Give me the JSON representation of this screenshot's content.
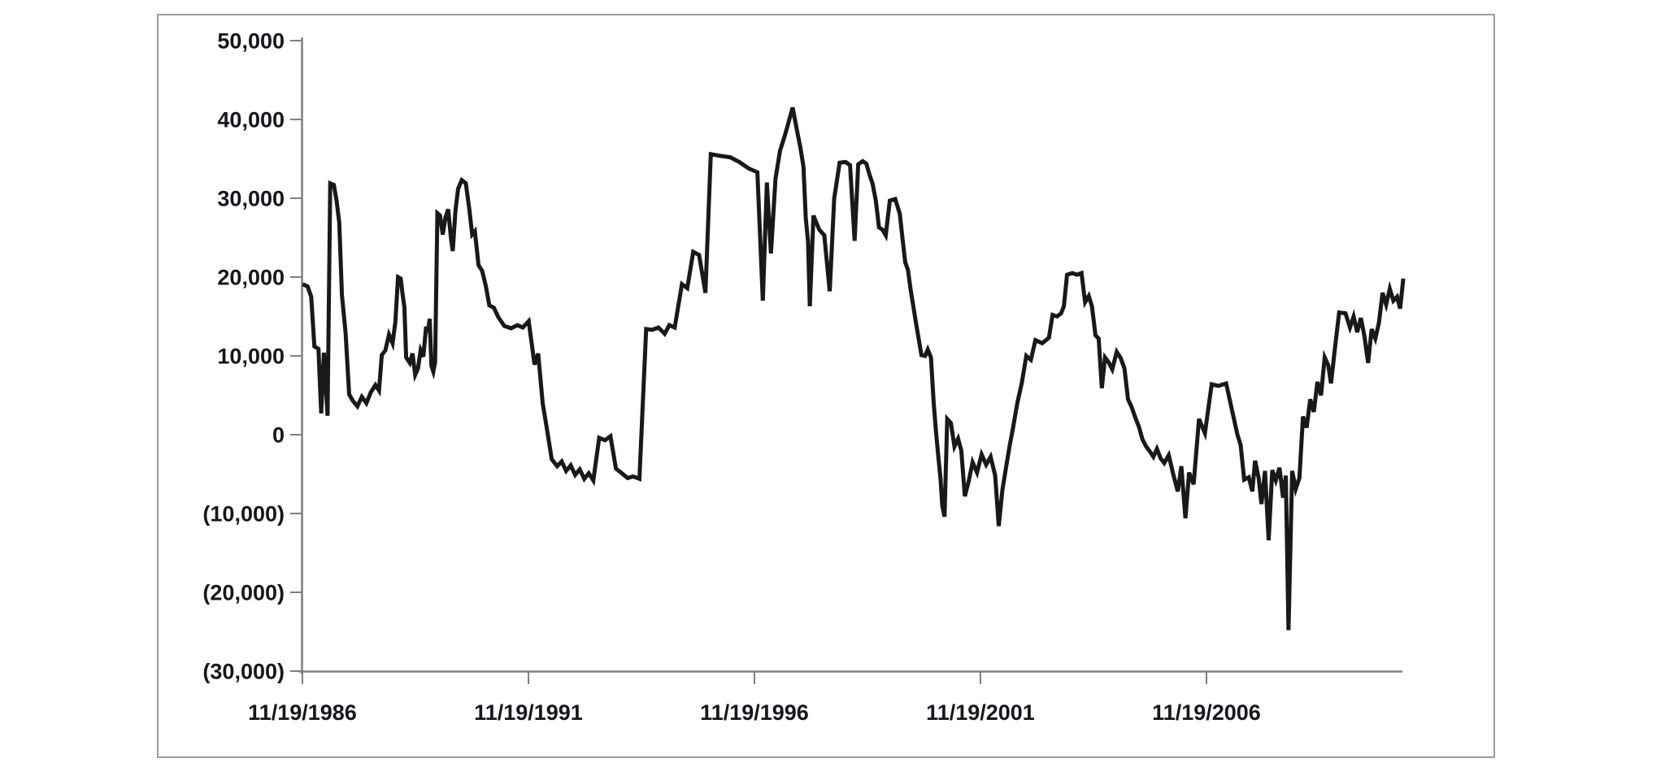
{
  "figure": {
    "background": "#ffffff",
    "border_color": "#9c9c9c"
  },
  "chart_data": {
    "type": "line",
    "title": "",
    "xlabel": "",
    "ylabel": "",
    "legend": "none",
    "grid": false,
    "series_name": "net-position-line",
    "series_color": "#191919",
    "axis_color": "#7f7f7f",
    "label_color": "#16161e",
    "ylim": [
      -30000,
      50000
    ],
    "xlim": [
      1986.885,
      2011.3
    ],
    "y_tick_values": [
      50000,
      40000,
      30000,
      20000,
      10000,
      0,
      -10000,
      -20000,
      -30000
    ],
    "y_tick_labels": [
      "50,000",
      "40,000",
      "30,000",
      "20,000",
      "10,000",
      "0",
      "(10,000)",
      "(20,000)",
      "(30,000)"
    ],
    "x_tick_years": [
      1986.885,
      1991.885,
      1996.885,
      2001.885,
      2006.885
    ],
    "x_tick_labels": [
      "11/19/1986",
      "11/19/1991",
      "11/19/1996",
      "11/19/2001",
      "11/19/2006"
    ],
    "points": [
      [
        1986.89,
        19100
      ],
      [
        1987.0,
        18800
      ],
      [
        1987.08,
        17500
      ],
      [
        1987.15,
        11200
      ],
      [
        1987.24,
        10900
      ],
      [
        1987.3,
        2700
      ],
      [
        1987.36,
        10400
      ],
      [
        1987.44,
        2400
      ],
      [
        1987.5,
        31900
      ],
      [
        1987.58,
        31700
      ],
      [
        1987.64,
        29700
      ],
      [
        1987.7,
        26900
      ],
      [
        1987.76,
        17700
      ],
      [
        1987.84,
        12900
      ],
      [
        1987.92,
        5100
      ],
      [
        1988.0,
        4300
      ],
      [
        1988.1,
        3600
      ],
      [
        1988.2,
        4800
      ],
      [
        1988.3,
        4000
      ],
      [
        1988.4,
        5400
      ],
      [
        1988.5,
        6300
      ],
      [
        1988.58,
        5600
      ],
      [
        1988.64,
        10100
      ],
      [
        1988.72,
        10700
      ],
      [
        1988.8,
        12700
      ],
      [
        1988.88,
        11600
      ],
      [
        1988.94,
        14300
      ],
      [
        1989.0,
        20000
      ],
      [
        1989.06,
        19800
      ],
      [
        1989.1,
        17800
      ],
      [
        1989.14,
        16200
      ],
      [
        1989.18,
        9800
      ],
      [
        1989.26,
        9100
      ],
      [
        1989.32,
        10300
      ],
      [
        1989.38,
        7600
      ],
      [
        1989.44,
        8400
      ],
      [
        1989.5,
        10700
      ],
      [
        1989.56,
        9900
      ],
      [
        1989.62,
        13700
      ],
      [
        1989.66,
        13000
      ],
      [
        1989.7,
        14700
      ],
      [
        1989.74,
        8700
      ],
      [
        1989.78,
        8000
      ],
      [
        1989.82,
        9200
      ],
      [
        1989.87,
        28100
      ],
      [
        1989.93,
        27800
      ],
      [
        1989.99,
        25400
      ],
      [
        1990.05,
        27600
      ],
      [
        1990.11,
        28600
      ],
      [
        1990.17,
        25000
      ],
      [
        1990.21,
        23300
      ],
      [
        1990.27,
        28400
      ],
      [
        1990.33,
        31200
      ],
      [
        1990.41,
        32300
      ],
      [
        1990.5,
        31900
      ],
      [
        1990.58,
        28500
      ],
      [
        1990.64,
        25400
      ],
      [
        1990.7,
        25800
      ],
      [
        1990.78,
        21500
      ],
      [
        1990.86,
        20800
      ],
      [
        1990.94,
        18900
      ],
      [
        1991.02,
        16400
      ],
      [
        1991.12,
        16100
      ],
      [
        1991.22,
        14900
      ],
      [
        1991.35,
        13800
      ],
      [
        1991.5,
        13500
      ],
      [
        1991.64,
        13900
      ],
      [
        1991.76,
        13600
      ],
      [
        1991.89,
        14400
      ],
      [
        1992.02,
        8900
      ],
      [
        1992.1,
        10300
      ],
      [
        1992.2,
        4000
      ],
      [
        1992.3,
        500
      ],
      [
        1992.4,
        -3100
      ],
      [
        1992.52,
        -4000
      ],
      [
        1992.62,
        -3400
      ],
      [
        1992.72,
        -4600
      ],
      [
        1992.82,
        -3900
      ],
      [
        1992.92,
        -5100
      ],
      [
        1993.02,
        -4400
      ],
      [
        1993.12,
        -5600
      ],
      [
        1993.22,
        -4900
      ],
      [
        1993.32,
        -5800
      ],
      [
        1993.45,
        -400
      ],
      [
        1993.58,
        -700
      ],
      [
        1993.7,
        -200
      ],
      [
        1993.82,
        -4300
      ],
      [
        1993.95,
        -4900
      ],
      [
        1994.08,
        -5500
      ],
      [
        1994.2,
        -5300
      ],
      [
        1994.34,
        -5600
      ],
      [
        1994.49,
        13400
      ],
      [
        1994.62,
        13300
      ],
      [
        1994.76,
        13600
      ],
      [
        1994.9,
        12800
      ],
      [
        1995.0,
        13900
      ],
      [
        1995.12,
        13600
      ],
      [
        1995.28,
        19100
      ],
      [
        1995.4,
        18600
      ],
      [
        1995.53,
        23200
      ],
      [
        1995.66,
        22800
      ],
      [
        1995.8,
        18000
      ],
      [
        1995.92,
        35600
      ],
      [
        1996.1,
        35400
      ],
      [
        1996.35,
        35200
      ],
      [
        1996.55,
        34600
      ],
      [
        1996.75,
        33800
      ],
      [
        1996.95,
        33300
      ],
      [
        1997.07,
        17000
      ],
      [
        1997.16,
        32000
      ],
      [
        1997.25,
        23000
      ],
      [
        1997.35,
        32500
      ],
      [
        1997.45,
        36000
      ],
      [
        1997.56,
        38000
      ],
      [
        1997.73,
        41500
      ],
      [
        1997.83,
        38500
      ],
      [
        1997.9,
        36500
      ],
      [
        1997.97,
        34000
      ],
      [
        1998.02,
        27500
      ],
      [
        1998.07,
        24500
      ],
      [
        1998.11,
        16300
      ],
      [
        1998.19,
        27800
      ],
      [
        1998.32,
        26000
      ],
      [
        1998.43,
        25300
      ],
      [
        1998.55,
        18200
      ],
      [
        1998.65,
        30000
      ],
      [
        1998.77,
        34500
      ],
      [
        1998.9,
        34600
      ],
      [
        1999.0,
        34200
      ],
      [
        1999.1,
        24600
      ],
      [
        1999.18,
        34300
      ],
      [
        1999.28,
        34700
      ],
      [
        1999.36,
        34400
      ],
      [
        1999.43,
        33000
      ],
      [
        1999.5,
        31800
      ],
      [
        1999.57,
        29700
      ],
      [
        1999.64,
        26300
      ],
      [
        1999.72,
        26000
      ],
      [
        1999.79,
        25300
      ],
      [
        1999.88,
        29700
      ],
      [
        2000.0,
        29900
      ],
      [
        2000.1,
        28000
      ],
      [
        2000.16,
        24900
      ],
      [
        2000.22,
        21900
      ],
      [
        2000.28,
        20900
      ],
      [
        2000.34,
        18400
      ],
      [
        2000.4,
        16300
      ],
      [
        2000.46,
        14100
      ],
      [
        2000.52,
        12100
      ],
      [
        2000.58,
        10100
      ],
      [
        2000.66,
        10000
      ],
      [
        2000.72,
        10800
      ],
      [
        2000.79,
        9800
      ],
      [
        2000.85,
        4000
      ],
      [
        2000.9,
        500
      ],
      [
        2000.95,
        -2600
      ],
      [
        2001.0,
        -5500
      ],
      [
        2001.04,
        -9000
      ],
      [
        2001.09,
        -10400
      ],
      [
        2001.15,
        2000
      ],
      [
        2001.23,
        1500
      ],
      [
        2001.31,
        -1500
      ],
      [
        2001.39,
        -500
      ],
      [
        2001.46,
        -2000
      ],
      [
        2001.54,
        -7800
      ],
      [
        2001.62,
        -6000
      ],
      [
        2001.71,
        -3500
      ],
      [
        2001.81,
        -4800
      ],
      [
        2001.91,
        -2500
      ],
      [
        2002.01,
        -3800
      ],
      [
        2002.11,
        -2800
      ],
      [
        2002.21,
        -5200
      ],
      [
        2002.29,
        -11600
      ],
      [
        2002.37,
        -7000
      ],
      [
        2002.45,
        -4200
      ],
      [
        2002.53,
        -1400
      ],
      [
        2002.61,
        1000
      ],
      [
        2002.7,
        4000
      ],
      [
        2002.8,
        6600
      ],
      [
        2002.9,
        10000
      ],
      [
        2003.0,
        9500
      ],
      [
        2003.1,
        12000
      ],
      [
        2003.25,
        11600
      ],
      [
        2003.4,
        12300
      ],
      [
        2003.48,
        15200
      ],
      [
        2003.58,
        15000
      ],
      [
        2003.67,
        15400
      ],
      [
        2003.73,
        16300
      ],
      [
        2003.8,
        20300
      ],
      [
        2003.92,
        20500
      ],
      [
        2004.02,
        20300
      ],
      [
        2004.12,
        20500
      ],
      [
        2004.2,
        16800
      ],
      [
        2004.28,
        17600
      ],
      [
        2004.35,
        16300
      ],
      [
        2004.43,
        12600
      ],
      [
        2004.5,
        12200
      ],
      [
        2004.57,
        5900
      ],
      [
        2004.64,
        9800
      ],
      [
        2004.72,
        9200
      ],
      [
        2004.8,
        8300
      ],
      [
        2004.9,
        10500
      ],
      [
        2004.99,
        9700
      ],
      [
        2005.07,
        8400
      ],
      [
        2005.15,
        4500
      ],
      [
        2005.23,
        3500
      ],
      [
        2005.31,
        2200
      ],
      [
        2005.39,
        1000
      ],
      [
        2005.47,
        -600
      ],
      [
        2005.55,
        -1500
      ],
      [
        2005.63,
        -2100
      ],
      [
        2005.71,
        -2800
      ],
      [
        2005.79,
        -1800
      ],
      [
        2005.87,
        -3000
      ],
      [
        2005.95,
        -3600
      ],
      [
        2006.05,
        -2600
      ],
      [
        2006.15,
        -5000
      ],
      [
        2006.25,
        -7200
      ],
      [
        2006.33,
        -4000
      ],
      [
        2006.42,
        -10600
      ],
      [
        2006.5,
        -4800
      ],
      [
        2006.6,
        -6300
      ],
      [
        2006.72,
        2000
      ],
      [
        2006.85,
        200
      ],
      [
        2007.0,
        6400
      ],
      [
        2007.15,
        6200
      ],
      [
        2007.32,
        6500
      ],
      [
        2007.47,
        2600
      ],
      [
        2007.57,
        0
      ],
      [
        2007.64,
        -1300
      ],
      [
        2007.72,
        -5700
      ],
      [
        2007.82,
        -5400
      ],
      [
        2007.9,
        -7200
      ],
      [
        2007.96,
        -3300
      ],
      [
        2008.04,
        -5500
      ],
      [
        2008.1,
        -8800
      ],
      [
        2008.18,
        -4600
      ],
      [
        2008.26,
        -13400
      ],
      [
        2008.34,
        -4500
      ],
      [
        2008.42,
        -5800
      ],
      [
        2008.5,
        -4200
      ],
      [
        2008.58,
        -8000
      ],
      [
        2008.64,
        -5200
      ],
      [
        2008.7,
        -24800
      ],
      [
        2008.78,
        -4600
      ],
      [
        2008.86,
        -6900
      ],
      [
        2008.94,
        -5500
      ],
      [
        2009.02,
        2300
      ],
      [
        2009.1,
        900
      ],
      [
        2009.18,
        4500
      ],
      [
        2009.26,
        2900
      ],
      [
        2009.34,
        6700
      ],
      [
        2009.42,
        5000
      ],
      [
        2009.5,
        9800
      ],
      [
        2009.58,
        8800
      ],
      [
        2009.64,
        6500
      ],
      [
        2009.72,
        10600
      ],
      [
        2009.82,
        15500
      ],
      [
        2009.96,
        15400
      ],
      [
        2010.06,
        13600
      ],
      [
        2010.14,
        15000
      ],
      [
        2010.22,
        13000
      ],
      [
        2010.3,
        14800
      ],
      [
        2010.38,
        12500
      ],
      [
        2010.46,
        9100
      ],
      [
        2010.54,
        13400
      ],
      [
        2010.62,
        12200
      ],
      [
        2010.7,
        14200
      ],
      [
        2010.78,
        18000
      ],
      [
        2010.86,
        16500
      ],
      [
        2010.94,
        18500
      ],
      [
        2011.02,
        17000
      ],
      [
        2011.1,
        17500
      ],
      [
        2011.17,
        16000
      ],
      [
        2011.24,
        19800
      ]
    ]
  }
}
